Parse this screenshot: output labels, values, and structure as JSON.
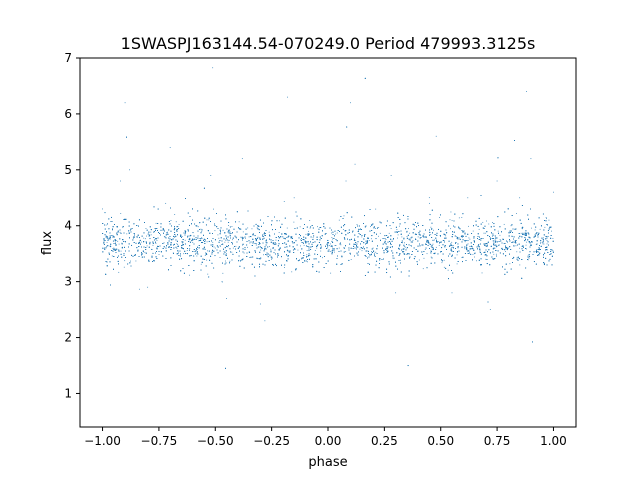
{
  "chart_data": {
    "type": "scatter",
    "title": "1SWASPJ163144.54-070249.0 Period 479993.3125s",
    "xlabel": "phase",
    "ylabel": "flux",
    "xlim": [
      -1.1,
      1.1
    ],
    "ylim": [
      0.4,
      7.0
    ],
    "xticks": [
      -1.0,
      -0.75,
      -0.5,
      -0.25,
      0.0,
      0.25,
      0.5,
      0.75,
      1.0
    ],
    "xtick_labels": [
      "−1.00",
      "−0.75",
      "−0.50",
      "−0.25",
      "0.00",
      "0.25",
      "0.50",
      "0.75",
      "1.00"
    ],
    "yticks": [
      1,
      2,
      3,
      4,
      5,
      6,
      7
    ],
    "ytick_labels": [
      "1",
      "2",
      "3",
      "4",
      "5",
      "6",
      "7"
    ],
    "grid": false,
    "marker_color": "#1f77b4",
    "baseline_flux": 3.7,
    "flare_phases": [
      -0.9,
      -0.7,
      -0.52,
      -0.38,
      -0.18,
      0.1,
      0.28,
      0.48,
      0.62,
      0.75,
      0.88
    ],
    "dip_phases": [
      -0.82,
      -0.45,
      -0.28,
      0.3,
      0.55,
      0.72
    ],
    "x": [
      -1.0,
      -0.98,
      -0.95,
      -0.92,
      -0.9,
      -0.88,
      -0.85,
      -0.8,
      -0.76,
      -0.72,
      -0.7,
      -0.68,
      -0.64,
      -0.6,
      -0.56,
      -0.52,
      -0.5,
      -0.47,
      -0.45,
      -0.42,
      -0.38,
      -0.35,
      -0.3,
      -0.28,
      -0.25,
      -0.2,
      -0.18,
      -0.15,
      -0.1,
      -0.05,
      0.0,
      0.05,
      0.08,
      0.1,
      0.12,
      0.15,
      0.2,
      0.25,
      0.28,
      0.3,
      0.35,
      0.4,
      0.45,
      0.48,
      0.5,
      0.55,
      0.6,
      0.62,
      0.65,
      0.7,
      0.72,
      0.75,
      0.8,
      0.85,
      0.88,
      0.9,
      0.95,
      0.98,
      1.0
    ],
    "y": [
      4.3,
      3.7,
      3.6,
      4.8,
      6.2,
      5.0,
      3.8,
      2.9,
      3.6,
      4.4,
      5.4,
      4.2,
      3.5,
      3.7,
      3.9,
      4.9,
      3.6,
      3.0,
      2.7,
      3.6,
      5.2,
      3.8,
      2.6,
      2.3,
      3.4,
      3.8,
      6.3,
      4.5,
      3.7,
      3.6,
      3.7,
      4.1,
      4.8,
      6.2,
      5.1,
      3.8,
      3.6,
      3.7,
      4.9,
      2.8,
      3.6,
      3.8,
      4.4,
      5.6,
      3.7,
      2.8,
      3.9,
      4.5,
      3.7,
      3.4,
      2.5,
      4.8,
      3.6,
      4.5,
      6.4,
      5.2,
      3.7,
      4.1,
      4.6
    ]
  }
}
